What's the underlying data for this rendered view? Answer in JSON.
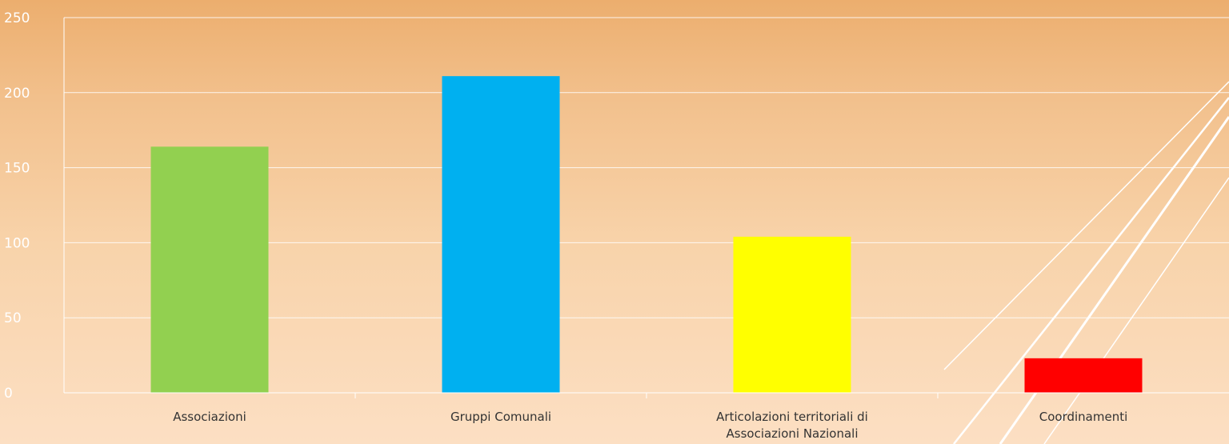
{
  "chart_data": {
    "type": "bar",
    "categories": [
      [
        "Associazioni"
      ],
      [
        "Gruppi Comunali"
      ],
      [
        "Articolazioni territoriali di",
        "Associazioni Nazionali"
      ],
      [
        "Coordinamenti"
      ]
    ],
    "values": [
      164,
      211,
      104,
      23
    ],
    "colors": [
      "#92d050",
      "#00b0f0",
      "#ffff00",
      "#ff0000"
    ],
    "ylim": [
      0,
      250
    ],
    "yticks": [
      "0",
      "50",
      "100",
      "150",
      "200",
      "250"
    ],
    "grid": true,
    "title": "",
    "xlabel": "",
    "ylabel": ""
  }
}
